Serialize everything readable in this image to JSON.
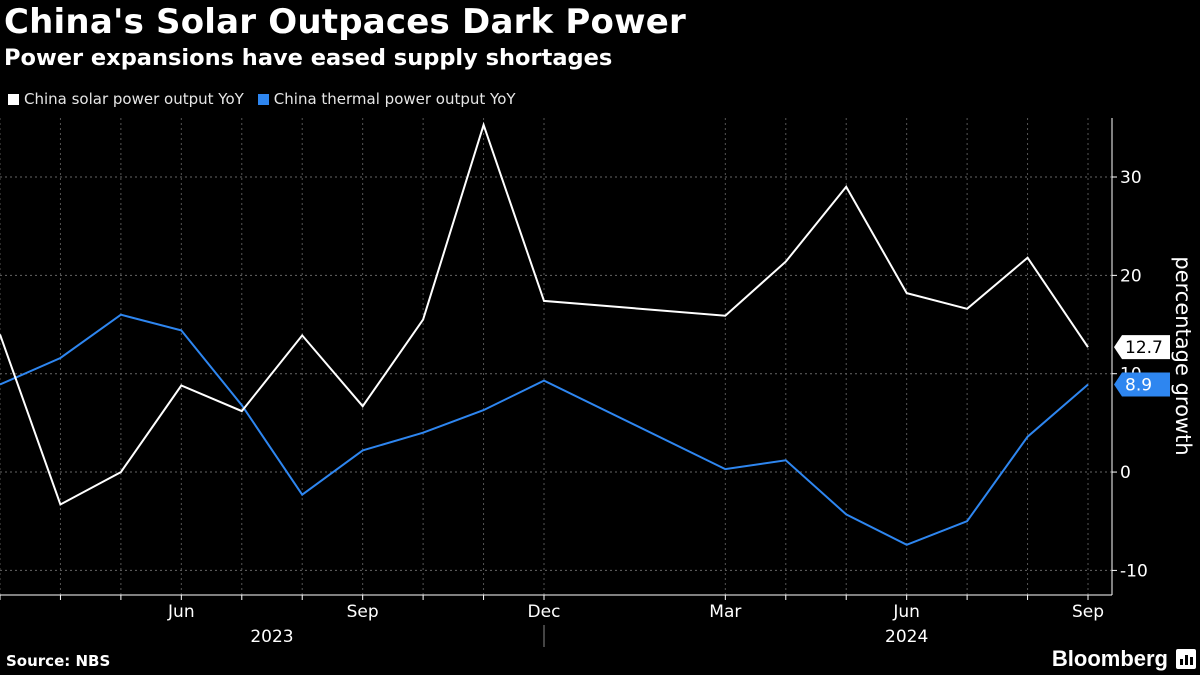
{
  "title": "China's Solar Outpaces Dark Power",
  "subtitle": "Power expansions have eased supply shortages",
  "source": "Source: NBS",
  "brand": "Bloomberg",
  "colors": {
    "background": "#000000",
    "solar": "#ffffff",
    "thermal": "#2e86f0",
    "grid": "#666666"
  },
  "chart_data": {
    "type": "line",
    "title": "China's Solar Outpaces Dark Power",
    "subtitle": "Power expansions have eased supply shortages",
    "xlabel": "",
    "ylabel": "percentage growth",
    "ylim": [
      -12.5,
      36
    ],
    "yticks": [
      -10,
      0,
      10,
      20,
      30
    ],
    "y_tick_labels": [
      "-10",
      "0",
      "10",
      "20",
      "30"
    ],
    "x": [
      "2023-03",
      "2023-04",
      "2023-05",
      "2023-06",
      "2023-07",
      "2023-08",
      "2023-09",
      "2023-10",
      "2023-11",
      "2023-12",
      "2024-03",
      "2024-04",
      "2024-05",
      "2024-06",
      "2024-07",
      "2024-08",
      "2024-09"
    ],
    "x_tick_labels": [
      {
        "x": "2023-06",
        "label": "Jun"
      },
      {
        "x": "2023-09",
        "label": "Sep"
      },
      {
        "x": "2023-12",
        "label": "Dec"
      },
      {
        "x": "2024-03",
        "label": "Mar"
      },
      {
        "x": "2024-06",
        "label": "Jun"
      },
      {
        "x": "2024-09",
        "label": "Sep"
      }
    ],
    "year_labels": [
      {
        "label": "2023",
        "from": "2023-03",
        "to": "2023-12"
      },
      {
        "label": "2024",
        "from": "2024-03",
        "to": "2024-09"
      }
    ],
    "series": [
      {
        "name": "China solar power output YoY",
        "color": "#ffffff",
        "values": [
          14.0,
          -3.3,
          0.0,
          8.8,
          6.2,
          13.9,
          6.7,
          15.5,
          35.3,
          17.4,
          15.9,
          21.4,
          29.0,
          18.2,
          16.6,
          21.8,
          12.7
        ],
        "last_label": "12.7"
      },
      {
        "name": "China thermal power output YoY",
        "color": "#2e86f0",
        "values": [
          8.9,
          11.6,
          16.0,
          14.4,
          6.8,
          -2.3,
          2.2,
          4.0,
          6.3,
          9.3,
          0.3,
          1.2,
          -4.3,
          -7.4,
          -5.0,
          3.6,
          8.9
        ],
        "last_label": "8.9"
      }
    ],
    "grid": true,
    "legend": "top-left"
  }
}
